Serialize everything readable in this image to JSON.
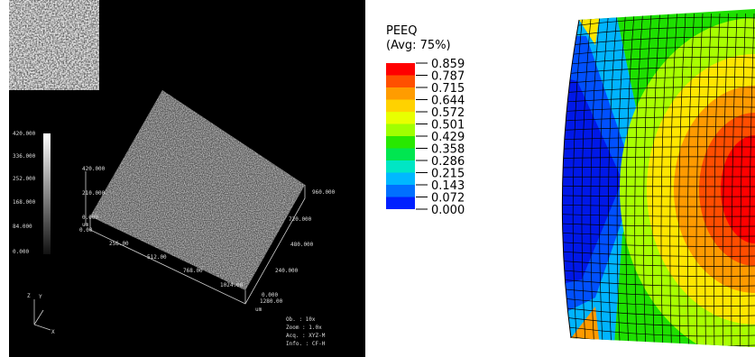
{
  "scan": {
    "scale_bar_labels": [
      "420.000",
      "336.000",
      "252.000",
      "168.000",
      "84.000",
      "0.000"
    ],
    "z_axis_labels": [
      "420.000",
      "210.000",
      "0.000",
      "um"
    ],
    "x_axis_labels": [
      "0.00",
      "256.00",
      "512.00",
      "768.00",
      "1024.00",
      "1280.00",
      "um"
    ],
    "y_axis_labels": [
      "960.000",
      "720.000",
      "480.000",
      "240.000",
      "0.000"
    ],
    "info": [
      "Ob.   : 10x",
      "Zoom  : 1.0x",
      "Acq.  : XYZ-M",
      "Info. : CF-H"
    ],
    "triad": [
      "Z",
      "Y",
      "X"
    ]
  },
  "legend": {
    "title": "PEEQ",
    "subtitle": "(Avg: 75%)",
    "labels": [
      "0.859",
      "0.787",
      "0.715",
      "0.644",
      "0.572",
      "0.501",
      "0.429",
      "0.358",
      "0.286",
      "0.215",
      "0.143",
      "0.072",
      "0.000"
    ]
  }
}
